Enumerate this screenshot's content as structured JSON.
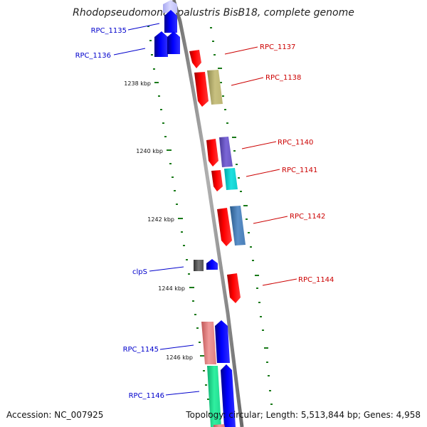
{
  "title": "Rhodopseudomonas palustris BisB18, complete genome",
  "footer": {
    "accession": "Accession: NC_007925",
    "topology": "Topology: circular; Length: 5,513,844 bp; Genes: 4,958"
  },
  "ticks": [
    {
      "label": "1238 kbp"
    },
    {
      "label": "1240 kbp"
    },
    {
      "label": "1242 kbp"
    },
    {
      "label": "1244 kbp"
    },
    {
      "label": "1246 kbp"
    }
  ],
  "gene_labels": {
    "left": [
      {
        "name": "rpc_1135",
        "label": "RPC_1135"
      },
      {
        "name": "rpc_1136",
        "label": "RPC_1136"
      },
      {
        "name": "clps",
        "label": "clpS"
      },
      {
        "name": "rpc_1145",
        "label": "RPC_1145"
      },
      {
        "name": "rpc_1146",
        "label": "RPC_1146"
      }
    ],
    "right": [
      {
        "name": "rpc_1137",
        "label": "RPC_1137"
      },
      {
        "name": "rpc_1138",
        "label": "RPC_1138"
      },
      {
        "name": "rpc_1140",
        "label": "RPC_1140"
      },
      {
        "name": "rpc_1141",
        "label": "RPC_1141"
      },
      {
        "name": "rpc_1142",
        "label": "RPC_1142"
      },
      {
        "name": "rpc_1144",
        "label": "RPC_1144"
      }
    ]
  },
  "colors": {
    "forward_label": "#0000cc",
    "reverse_label": "#cc0000",
    "backbone": "#888888",
    "ruler": "#1a7a1a",
    "forward_cds": "#0000ff",
    "reverse_cds": "#ff0000"
  }
}
